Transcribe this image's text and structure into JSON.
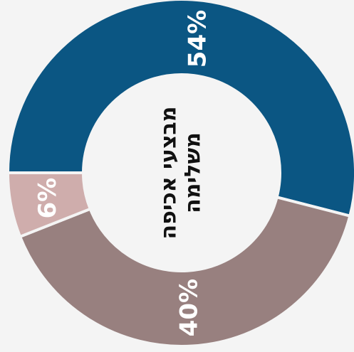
{
  "chart_data": {
    "type": "donut",
    "title": [
      "מבצעי אכיפה",
      "משלימה"
    ],
    "categories": [
      null,
      null,
      null
    ],
    "values": [
      54,
      40,
      6
    ],
    "value_labels": [
      "54%",
      "40%",
      "6%"
    ],
    "colors": [
      "#0b5683",
      "#98807f",
      "#cfadac"
    ]
  }
}
